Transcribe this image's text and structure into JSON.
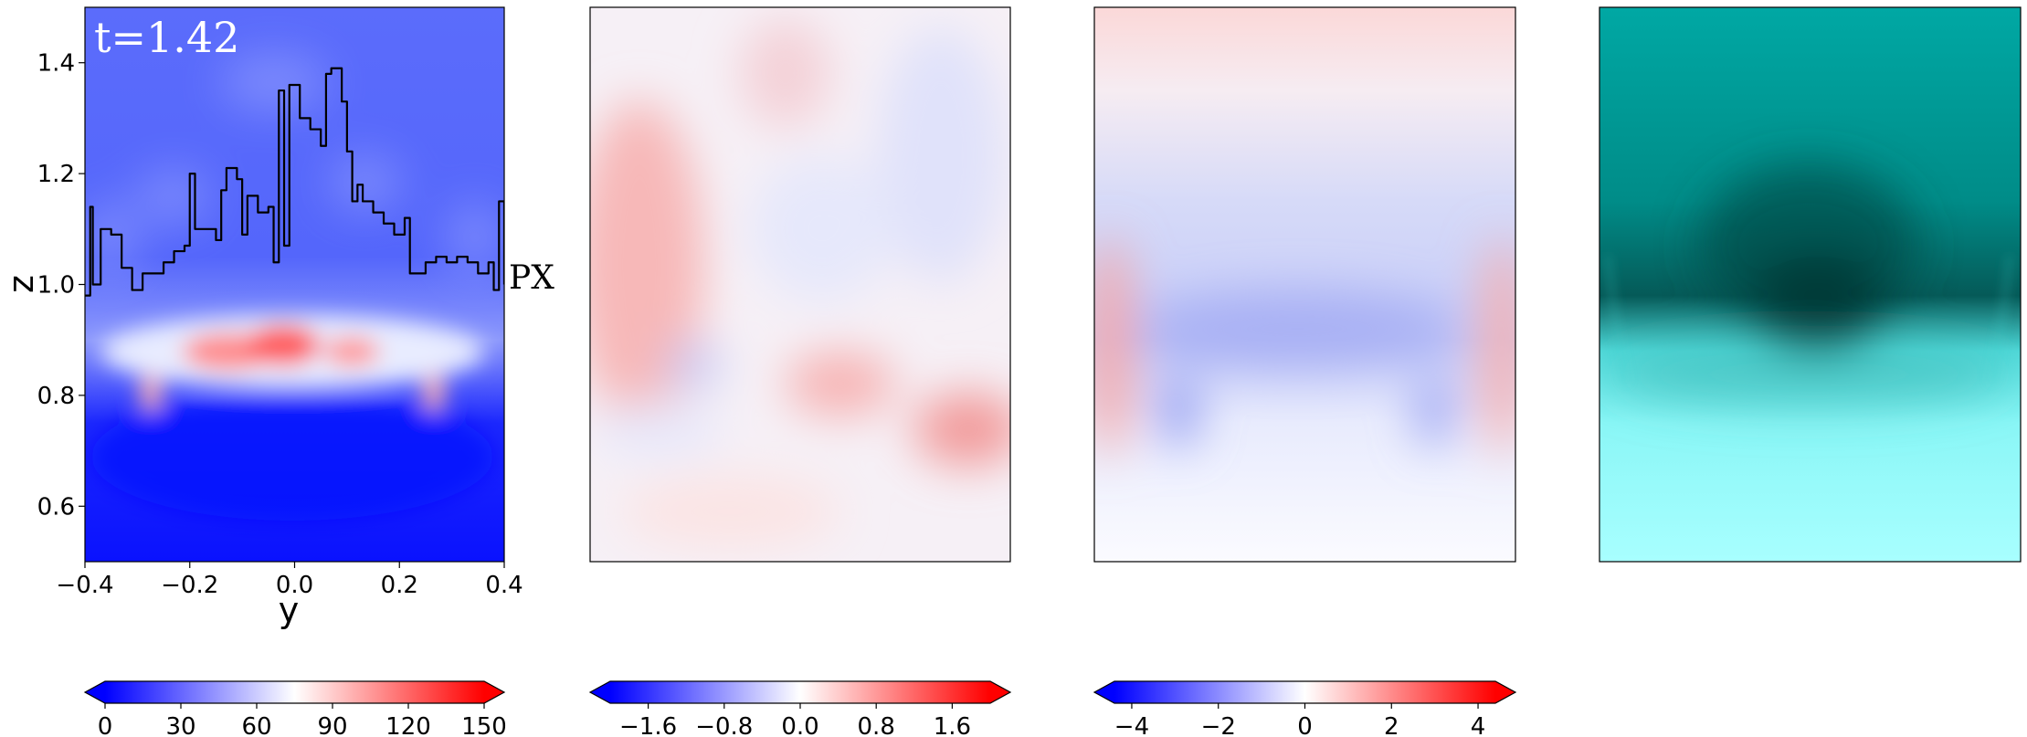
{
  "time_label": "t=1.42",
  "curve_label": "PX",
  "colors": {
    "blue": "#0000ff",
    "white": "#ffffff",
    "red": "#ff0000",
    "teal_dark": "#008b8b",
    "teal_light": "#40ffff",
    "curve": "#000000"
  },
  "chart_data": [
    {
      "type": "heatmap",
      "panel": 1,
      "xlabel": "y",
      "ylabel": "z",
      "xlim": [
        -0.4,
        0.4
      ],
      "ylim": [
        0.5,
        1.5
      ],
      "xticks": [
        "−0.4",
        "−0.2",
        "0.0",
        "0.2",
        "0.4"
      ],
      "yticks": [
        "0.6",
        "0.8",
        "1.0",
        "1.2",
        "1.4"
      ],
      "colormap": "bwr",
      "colorbar_ticks": [
        "0",
        "30",
        "60",
        "90",
        "120",
        "150"
      ],
      "colorbar_range": [
        0,
        150
      ],
      "curve": {
        "name": "PX",
        "y": [
          -0.4,
          -0.39,
          -0.385,
          -0.37,
          -0.35,
          -0.33,
          -0.31,
          -0.29,
          -0.27,
          -0.25,
          -0.23,
          -0.21,
          -0.2,
          -0.19,
          -0.17,
          -0.15,
          -0.14,
          -0.13,
          -0.11,
          -0.1,
          -0.09,
          -0.07,
          -0.05,
          -0.04,
          -0.03,
          -0.02,
          -0.01,
          0.0,
          0.01,
          0.03,
          0.05,
          0.06,
          0.07,
          0.08,
          0.09,
          0.1,
          0.11,
          0.12,
          0.13,
          0.15,
          0.17,
          0.19,
          0.21,
          0.22,
          0.23,
          0.25,
          0.27,
          0.29,
          0.31,
          0.33,
          0.35,
          0.37,
          0.38,
          0.39,
          0.4
        ],
        "z": [
          0.98,
          1.14,
          1.0,
          1.1,
          1.09,
          1.03,
          0.99,
          1.02,
          1.02,
          1.04,
          1.06,
          1.07,
          1.2,
          1.1,
          1.1,
          1.08,
          1.17,
          1.21,
          1.19,
          1.09,
          1.16,
          1.13,
          1.14,
          1.04,
          1.35,
          1.07,
          1.36,
          1.36,
          1.3,
          1.28,
          1.25,
          1.38,
          1.39,
          1.39,
          1.33,
          1.24,
          1.15,
          1.18,
          1.15,
          1.13,
          1.11,
          1.09,
          1.12,
          1.02,
          1.02,
          1.04,
          1.05,
          1.04,
          1.05,
          1.04,
          1.02,
          1.04,
          0.99,
          1.15,
          1.0
        ]
      }
    },
    {
      "type": "heatmap",
      "panel": 2,
      "colormap": "bwr",
      "colorbar_ticks": [
        "−1.6",
        "−0.8",
        "0.0",
        "0.8",
        "1.6"
      ],
      "colorbar_range": [
        -2.0,
        2.0
      ]
    },
    {
      "type": "heatmap",
      "panel": 3,
      "colormap": "bwr",
      "colorbar_ticks": [
        "−4",
        "−2",
        "0",
        "2",
        "4"
      ],
      "colorbar_range": [
        -4.4,
        4.4
      ]
    },
    {
      "type": "heatmap",
      "panel": 4,
      "colormap": "teal"
    }
  ]
}
